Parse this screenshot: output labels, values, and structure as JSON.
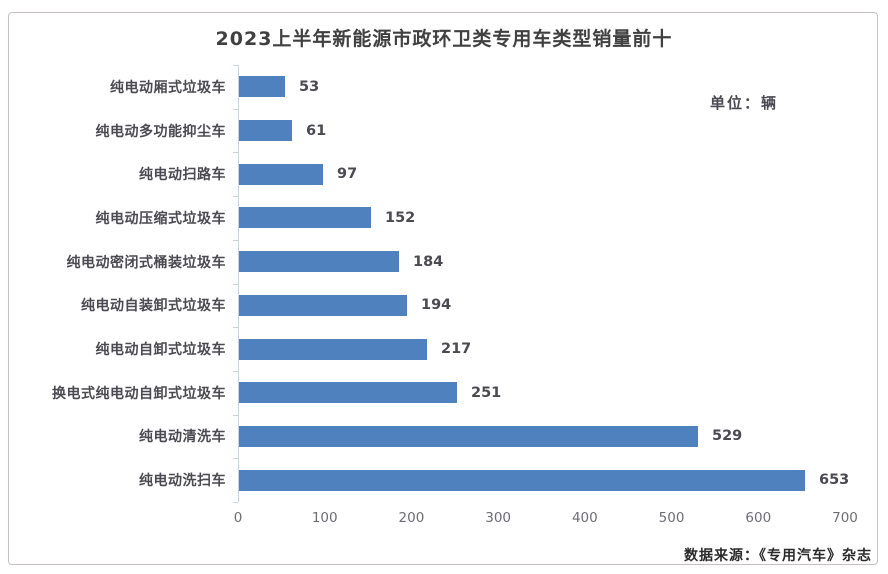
{
  "title": "2023上半年新能源市政环卫类专用车类型销量前十",
  "unit_label": "单位：辆",
  "source_label": "数据来源：《专用汽车》杂志",
  "colors": {
    "bar": "#4e81bd",
    "axis_line": "#c9d3e2",
    "title_text": "#404040",
    "label_text": "#4b4a50",
    "tick_text": "#6e6d75",
    "frame_border": "#c6c0c6",
    "background": "#ffffff"
  },
  "chart_data": {
    "type": "bar",
    "orientation": "horizontal",
    "title": "2023上半年新能源市政环卫类专用车类型销量前十",
    "unit": "辆",
    "categories": [
      "纯电动厢式垃圾车",
      "纯电动多功能抑尘车",
      "纯电动扫路车",
      "纯电动压缩式垃圾车",
      "纯电动密闭式桶装垃圾车",
      "纯电动自装卸式垃圾车",
      "纯电动自卸式垃圾车",
      "换电式纯电动自卸式垃圾车",
      "纯电动清洗车",
      "纯电动洗扫车"
    ],
    "values": [
      53,
      61,
      97,
      152,
      184,
      194,
      217,
      251,
      529,
      653
    ],
    "xlabel": "",
    "ylabel": "",
    "xlim": [
      0,
      700
    ],
    "x_ticks": [
      0,
      100,
      200,
      300,
      400,
      500,
      600,
      700
    ],
    "value_labels": true,
    "grid": false,
    "legend": "none",
    "source": "数据来源：《专用汽车》杂志"
  }
}
